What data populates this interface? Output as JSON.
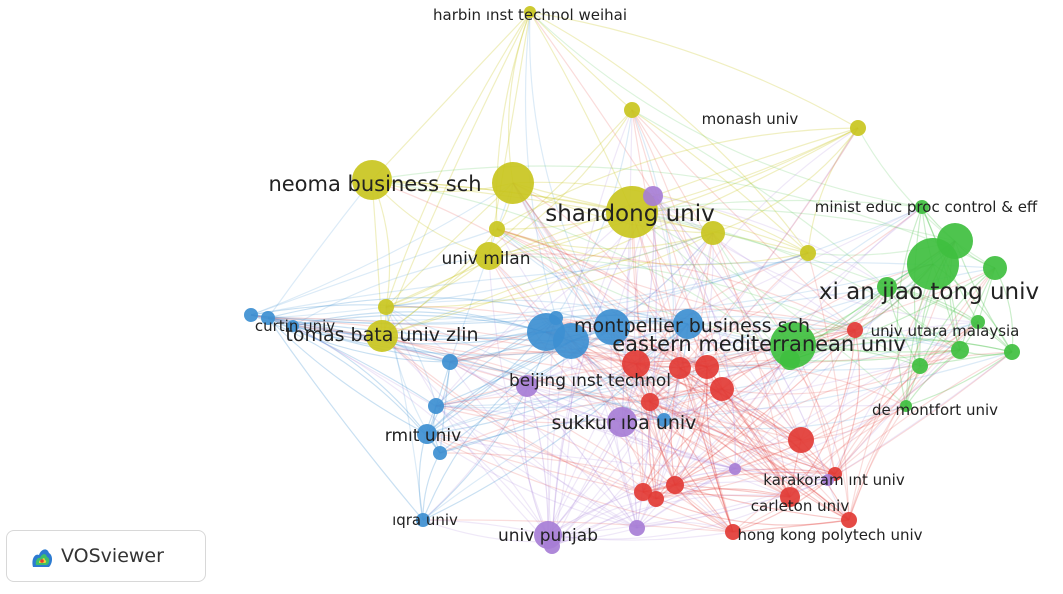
{
  "network": {
    "colors": {
      "yellow": "#c9c520",
      "green": "#3fbf3f",
      "blue": "#3d8fd1",
      "red": "#e23b35",
      "purple": "#a77ed6"
    },
    "labels": {
      "harbin": "harbin ınst technol weihai",
      "monash": "monash univ",
      "neoma": "neoma business sch",
      "shandong": "shandong univ",
      "minist": "minist educ proc control & eff",
      "milan": "univ milan",
      "xianjiao": "xi an jiao tong univ",
      "curtin": "curtin univ",
      "montpellier": "montpellier business sch",
      "utara": "univ utara malaysia",
      "tomas": "tomas bata univ zlin",
      "eastern": "eastern mediterranean univ",
      "beijing": "beijing ınst technol",
      "demontfort": "de montfort univ",
      "sukkur": "sukkur ıba univ",
      "rmit": "rmıt univ",
      "karakoram": "karakoram ınt univ",
      "carleton": "carleton univ",
      "iqra": "ıqra univ",
      "punjab": "univ punjab",
      "hongkong": "hong kong polytech univ"
    }
  },
  "logo": {
    "text": "VOSviewer",
    "icon": "vosviewer-logo-icon"
  }
}
